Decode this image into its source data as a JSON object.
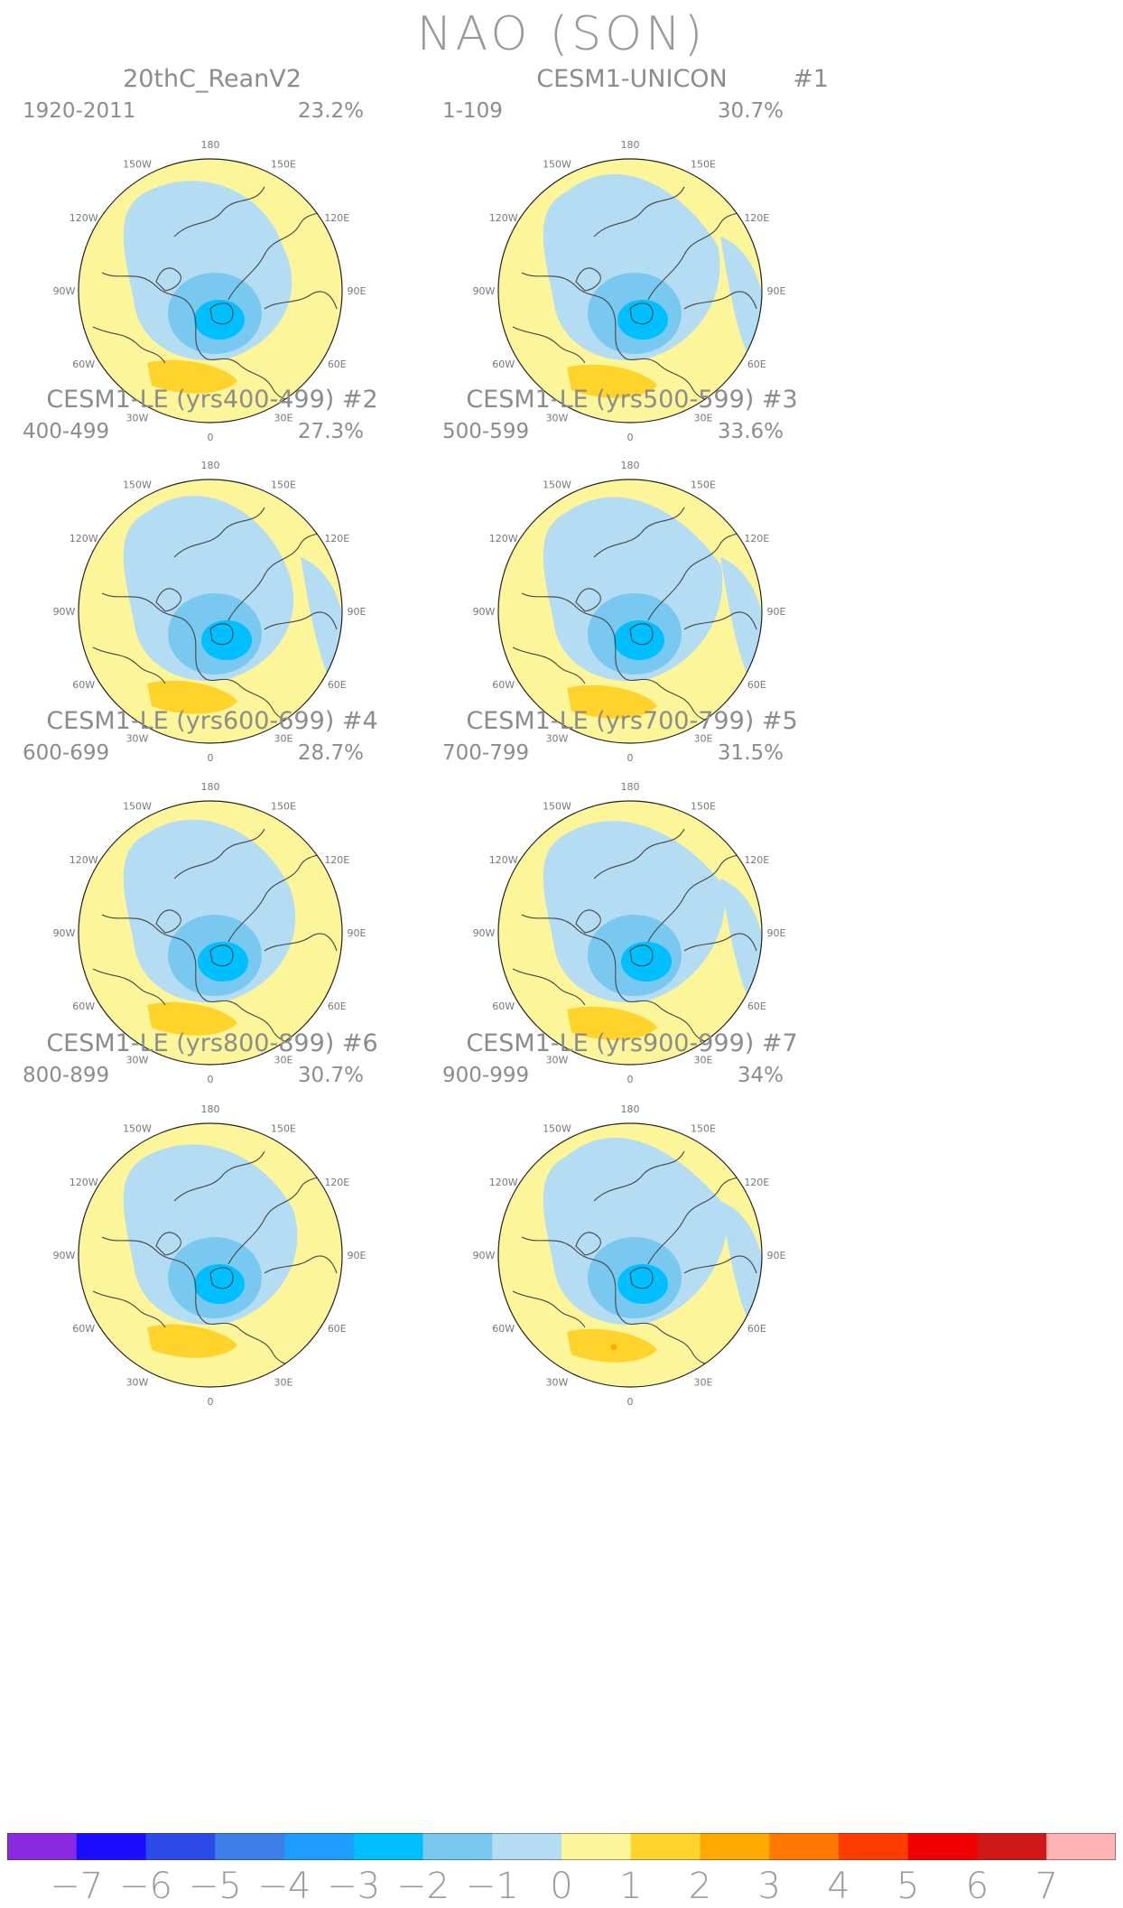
{
  "title": "NAO (SON)",
  "chart_data": [
    {
      "type": "contour-map",
      "projection": "north-polar-stereographic",
      "title": "20thC_ReanV2",
      "member": "",
      "period": "1920-2011",
      "variance_explained": "23.2%",
      "negative_center_level": -4,
      "positive_center_level": 1
    },
    {
      "type": "contour-map",
      "projection": "north-polar-stereographic",
      "title": "CESM1-UNICON",
      "member": "#1",
      "period": "1-109",
      "variance_explained": "30.7%",
      "negative_center_level": -4,
      "positive_center_level": 1
    },
    {
      "type": "contour-map",
      "projection": "north-polar-stereographic",
      "title": "CESM1-LE (yrs400-499) #2",
      "member": "",
      "period": "400-499",
      "variance_explained": "27.3%",
      "negative_center_level": -4,
      "positive_center_level": 1
    },
    {
      "type": "contour-map",
      "projection": "north-polar-stereographic",
      "title": "CESM1-LE (yrs500-599) #3",
      "member": "",
      "period": "500-599",
      "variance_explained": "33.6%",
      "negative_center_level": -4,
      "positive_center_level": 1
    },
    {
      "type": "contour-map",
      "projection": "north-polar-stereographic",
      "title": "CESM1-LE (yrs600-699) #4",
      "member": "",
      "period": "600-699",
      "variance_explained": "28.7%",
      "negative_center_level": -4,
      "positive_center_level": 1
    },
    {
      "type": "contour-map",
      "projection": "north-polar-stereographic",
      "title": "CESM1-LE (yrs700-799) #5",
      "member": "",
      "period": "700-799",
      "variance_explained": "31.5%",
      "negative_center_level": -4,
      "positive_center_level": 1
    },
    {
      "type": "contour-map",
      "projection": "north-polar-stereographic",
      "title": "CESM1-LE (yrs800-899) #6",
      "member": "",
      "period": "800-899",
      "variance_explained": "30.7%",
      "negative_center_level": -4,
      "positive_center_level": 1
    },
    {
      "type": "contour-map",
      "projection": "north-polar-stereographic",
      "title": "CESM1-LE (yrs900-999) #7",
      "member": "",
      "period": "900-999",
      "variance_explained": "34%",
      "negative_center_level": -4,
      "positive_center_level": 2
    }
  ],
  "longitude_labels": [
    "180",
    "150E",
    "120E",
    "90E",
    "60E",
    "30E",
    "0",
    "30W",
    "60W",
    "90W",
    "120W",
    "150W"
  ],
  "colorbar": {
    "labels": [
      "−7",
      "−6",
      "−5",
      "−4",
      "−3",
      "−2",
      "−1",
      "0",
      "1",
      "2",
      "3",
      "4",
      "5",
      "6",
      "7"
    ],
    "colors": [
      "#8a2be2",
      "#1a0dff",
      "#2a4be8",
      "#3d7fe8",
      "#1e9bff",
      "#00bfff",
      "#78c8f0",
      "#b4dcf2",
      "#fdf59a",
      "#fed42c",
      "#feaa00",
      "#ff7800",
      "#ff3c00",
      "#f00000",
      "#d01818",
      "#ffb4b4"
    ]
  }
}
